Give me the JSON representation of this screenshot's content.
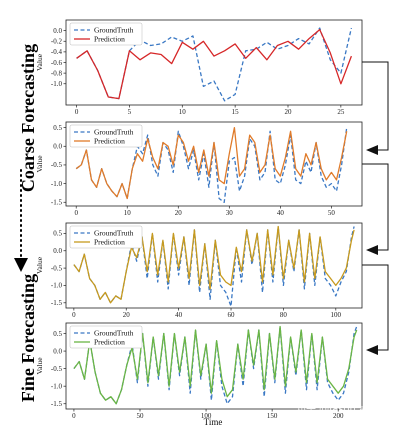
{
  "figure": {
    "side_label_top": "Coarse Forecasting",
    "side_label_bottom": "Fine Forecasting",
    "xlabel": "Time",
    "watermark": "知乎 @Jason anna"
  },
  "chart_data": [
    {
      "type": "line",
      "ylabel": "Value",
      "xlim": [
        -1,
        27
      ],
      "ylim": [
        -1.4,
        0.2
      ],
      "xticks": [
        0,
        5,
        10,
        15,
        20,
        25
      ],
      "yticks": [
        -1.0,
        -0.8,
        -0.6,
        -0.4,
        -0.2,
        0.0
      ],
      "ytick_labels": [
        "-1.0",
        "-0.8",
        "-0.6",
        "-0.4",
        "-0.2",
        "0.0"
      ],
      "legend": "top-left",
      "colors": {
        "GroundTruth": "#3a78c4",
        "Prediction": "#d62728"
      },
      "series": [
        {
          "name": "GroundTruth",
          "style": "dashed",
          "x": [
            0,
            1,
            2,
            3,
            4,
            5,
            6,
            7,
            8,
            9,
            10,
            11,
            12,
            13,
            14,
            15,
            16,
            17,
            18,
            19,
            20,
            21,
            22,
            23,
            24,
            25,
            26
          ],
          "values": [
            -0.52,
            -0.38,
            -0.75,
            -1.25,
            -1.28,
            -0.38,
            -0.18,
            -0.28,
            -0.25,
            -0.12,
            -0.2,
            -0.1,
            -1.05,
            -0.95,
            -1.32,
            -1.2,
            -0.38,
            -0.35,
            -0.22,
            -0.35,
            -0.28,
            -0.15,
            -0.25,
            0.05,
            -0.55,
            -0.8,
            0.05
          ]
        },
        {
          "name": "Prediction",
          "style": "solid",
          "x": [
            0,
            1,
            2,
            3,
            4,
            5,
            6,
            7,
            8,
            9,
            10,
            11,
            12,
            13,
            14,
            15,
            16,
            17,
            18,
            19,
            20,
            21,
            22,
            23,
            24,
            25,
            26
          ],
          "values": [
            -0.52,
            -0.38,
            -0.75,
            -1.25,
            -1.28,
            -0.38,
            -0.55,
            -0.42,
            -0.45,
            -0.62,
            -0.22,
            -0.35,
            -0.2,
            -0.48,
            -0.38,
            -0.25,
            -0.52,
            -0.32,
            -0.55,
            -0.28,
            -0.2,
            -0.35,
            -0.15,
            0.02,
            -0.42,
            -1.0,
            -0.48
          ]
        }
      ]
    },
    {
      "type": "line",
      "ylabel": "Value",
      "xlim": [
        -2,
        56
      ],
      "ylim": [
        -1.6,
        0.65
      ],
      "xticks": [
        0,
        10,
        20,
        30,
        40,
        50
      ],
      "yticks": [
        -1.5,
        -1.0,
        -0.5,
        0.0,
        0.5
      ],
      "ytick_labels": [
        "-1.5",
        "-1.0",
        "-0.5",
        "0.0",
        "0.5"
      ],
      "legend": "top-left",
      "colors": {
        "GroundTruth": "#3a78c4",
        "Prediction": "#e07b2a"
      },
      "series": [
        {
          "name": "GroundTruth",
          "style": "dashed",
          "x": [
            0,
            1,
            2,
            3,
            4,
            5,
            6,
            7,
            8,
            9,
            10,
            11,
            12,
            13,
            14,
            15,
            16,
            17,
            18,
            19,
            20,
            21,
            22,
            23,
            24,
            25,
            26,
            27,
            28,
            29,
            30,
            31,
            32,
            33,
            34,
            35,
            36,
            37,
            38,
            39,
            40,
            41,
            42,
            43,
            44,
            45,
            46,
            47,
            48,
            49,
            50,
            51,
            52,
            53
          ],
          "values": [
            -0.6,
            -0.5,
            -0.1,
            -0.9,
            -1.1,
            -0.6,
            -1.0,
            -1.2,
            -1.35,
            -1.0,
            -1.4,
            -0.6,
            0.0,
            -0.2,
            0.3,
            -0.5,
            -0.8,
            0.1,
            -0.1,
            -0.7,
            0.4,
            0.0,
            -0.6,
            -0.1,
            -0.9,
            -0.2,
            -1.1,
            0.1,
            -1.4,
            -1.5,
            -0.4,
            -0.3,
            -1.2,
            -0.8,
            0.2,
            0.0,
            -0.9,
            -0.7,
            0.4,
            -0.9,
            -1.0,
            -0.5,
            0.3,
            -0.9,
            -1.0,
            -0.4,
            -0.7,
            0.1,
            -0.8,
            -1.1,
            -1.0,
            -1.2,
            -0.5,
            0.5
          ]
        },
        {
          "name": "Prediction",
          "style": "solid",
          "x": [
            0,
            1,
            2,
            3,
            4,
            5,
            6,
            7,
            8,
            9,
            10,
            11,
            12,
            13,
            14,
            15,
            16,
            17,
            18,
            19,
            20,
            21,
            22,
            23,
            24,
            25,
            26,
            27,
            28,
            29,
            30,
            31,
            32,
            33,
            34,
            35,
            36,
            37,
            38,
            39,
            40,
            41,
            42,
            43,
            44,
            45,
            46,
            47,
            48,
            49,
            50,
            51,
            52,
            53
          ],
          "values": [
            -0.6,
            -0.5,
            -0.1,
            -0.9,
            -1.1,
            -0.6,
            -1.0,
            -1.2,
            -1.35,
            -1.0,
            -1.4,
            -0.6,
            -0.2,
            -0.4,
            0.2,
            -0.3,
            -0.6,
            0.1,
            0.0,
            -0.5,
            0.3,
            0.1,
            -0.4,
            0.0,
            -0.7,
            -0.1,
            -0.8,
            0.1,
            -0.9,
            -1.0,
            -0.2,
            0.5,
            -0.8,
            -0.6,
            0.3,
            0.1,
            -0.7,
            -0.5,
            0.3,
            -0.6,
            -0.8,
            -0.3,
            0.4,
            -0.6,
            -0.8,
            -0.2,
            -0.5,
            0.1,
            -0.6,
            -0.9,
            -0.7,
            -0.9,
            -0.3,
            0.4
          ]
        }
      ]
    },
    {
      "type": "line",
      "ylabel": "Value",
      "xlim": [
        -3,
        110
      ],
      "ylim": [
        -1.65,
        0.8
      ],
      "xticks": [
        0,
        20,
        40,
        60,
        80,
        100
      ],
      "yticks": [
        -1.5,
        -1.0,
        -0.5,
        0.0,
        0.5
      ],
      "ytick_labels": [
        "-1.5",
        "-1.0",
        "-0.5",
        "0.0",
        "0.5"
      ],
      "legend": "top-left",
      "colors": {
        "GroundTruth": "#3a78c4",
        "Prediction": "#c79a1e"
      },
      "series": [
        {
          "name": "GroundTruth",
          "style": "dashed",
          "x": [
            0,
            2,
            4,
            6,
            8,
            10,
            12,
            14,
            16,
            18,
            20,
            22,
            24,
            26,
            28,
            30,
            32,
            34,
            36,
            38,
            40,
            42,
            44,
            46,
            48,
            50,
            52,
            54,
            56,
            58,
            60,
            62,
            64,
            66,
            68,
            70,
            72,
            74,
            76,
            78,
            80,
            82,
            84,
            86,
            88,
            90,
            92,
            94,
            96,
            98,
            100,
            102,
            104,
            106,
            107
          ],
          "values": [
            -0.4,
            -0.6,
            -0.1,
            -0.8,
            -1.0,
            -1.4,
            -1.2,
            -1.5,
            -1.3,
            -1.4,
            -0.6,
            0.2,
            -0.3,
            0.4,
            -0.8,
            0.5,
            -0.9,
            0.3,
            -1.1,
            0.5,
            -0.7,
            0.4,
            -1.0,
            0.6,
            -1.2,
            0.2,
            -1.4,
            0.3,
            -1.0,
            -1.2,
            -1.6,
            0.1,
            -0.9,
            0.6,
            -0.4,
            0.5,
            -1.2,
            0.6,
            -0.9,
            0.7,
            -1.0,
            0.3,
            -0.6,
            0.6,
            -1.1,
            0.5,
            -1.0,
            0.4,
            -0.8,
            -1.0,
            -1.3,
            -0.9,
            -0.6,
            0.4,
            0.7
          ]
        },
        {
          "name": "Prediction",
          "style": "solid",
          "x": [
            0,
            2,
            4,
            6,
            8,
            10,
            12,
            14,
            16,
            18,
            20,
            22,
            24,
            26,
            28,
            30,
            32,
            34,
            36,
            38,
            40,
            42,
            44,
            46,
            48,
            50,
            52,
            54,
            56,
            58,
            60,
            62,
            64,
            66,
            68,
            70,
            72,
            74,
            76,
            78,
            80,
            82,
            84,
            86,
            88,
            90,
            92,
            94,
            96,
            98,
            100,
            102,
            104,
            106,
            107
          ],
          "values": [
            -0.4,
            -0.6,
            -0.1,
            -0.8,
            -1.0,
            -1.4,
            -1.2,
            -1.5,
            -1.3,
            -1.4,
            -0.6,
            0.1,
            -0.2,
            0.4,
            -0.6,
            0.5,
            -0.7,
            0.3,
            -0.9,
            0.5,
            -0.5,
            0.4,
            -0.8,
            0.6,
            -1.0,
            0.2,
            -1.1,
            0.3,
            -0.7,
            -0.9,
            -1.0,
            0.1,
            -0.6,
            0.6,
            -0.3,
            0.5,
            -0.9,
            0.6,
            -0.7,
            0.7,
            -0.8,
            0.3,
            -0.5,
            0.6,
            -0.9,
            0.5,
            -0.8,
            0.4,
            -0.6,
            -0.8,
            -1.0,
            -0.8,
            -0.5,
            0.3,
            0.6
          ]
        }
      ]
    },
    {
      "type": "line",
      "ylabel": "Value",
      "xlim": [
        -6,
        218
      ],
      "ylim": [
        -1.65,
        0.8
      ],
      "xticks": [
        0,
        50,
        100,
        150,
        200
      ],
      "yticks": [
        -1.5,
        -1.0,
        -0.5,
        0.0,
        0.5
      ],
      "ytick_labels": [
        "-1.5",
        "-1.0",
        "-0.5",
        "0.0",
        "0.5"
      ],
      "legend": "top-left",
      "colors": {
        "GroundTruth": "#3a78c4",
        "Prediction": "#6ab545"
      },
      "series": [
        {
          "name": "GroundTruth",
          "style": "dashed",
          "x": [
            0,
            4,
            8,
            12,
            16,
            20,
            24,
            28,
            32,
            36,
            40,
            44,
            48,
            52,
            56,
            60,
            64,
            68,
            72,
            76,
            80,
            84,
            88,
            92,
            96,
            100,
            104,
            108,
            112,
            116,
            120,
            124,
            128,
            132,
            136,
            140,
            144,
            148,
            152,
            156,
            160,
            164,
            168,
            172,
            176,
            180,
            184,
            188,
            192,
            196,
            200,
            204,
            208,
            212,
            214
          ],
          "values": [
            -0.5,
            -0.3,
            -0.8,
            0.3,
            -0.6,
            -1.2,
            -1.4,
            -1.3,
            -1.5,
            -1.1,
            -0.4,
            0.2,
            -0.9,
            0.5,
            -1.0,
            0.4,
            -0.8,
            0.5,
            -1.1,
            0.5,
            -0.7,
            0.4,
            -1.2,
            0.6,
            -0.8,
            0.2,
            -1.4,
            0.3,
            -1.0,
            -1.5,
            -1.3,
            0.2,
            -1.0,
            0.6,
            -0.5,
            0.6,
            -1.3,
            0.5,
            -0.9,
            0.7,
            -1.2,
            0.4,
            -0.7,
            0.6,
            -1.1,
            0.5,
            -1.1,
            0.4,
            -0.9,
            -1.2,
            -1.4,
            -1.2,
            -0.6,
            0.5,
            0.7
          ]
        },
        {
          "name": "Prediction",
          "style": "solid",
          "x": [
            0,
            4,
            8,
            12,
            16,
            20,
            24,
            28,
            32,
            36,
            40,
            44,
            48,
            52,
            56,
            60,
            64,
            68,
            72,
            76,
            80,
            84,
            88,
            92,
            96,
            100,
            104,
            108,
            112,
            116,
            120,
            124,
            128,
            132,
            136,
            140,
            144,
            148,
            152,
            156,
            160,
            164,
            168,
            172,
            176,
            180,
            184,
            188,
            192,
            196,
            200,
            204,
            208,
            212,
            214
          ],
          "values": [
            -0.5,
            -0.3,
            -0.8,
            0.3,
            -0.6,
            -1.2,
            -1.4,
            -1.3,
            -1.5,
            -1.1,
            -0.4,
            0.1,
            -0.8,
            0.5,
            -0.9,
            0.4,
            -0.7,
            0.5,
            -1.0,
            0.5,
            -0.6,
            0.4,
            -1.0,
            0.6,
            -0.7,
            0.2,
            -1.2,
            0.3,
            -0.8,
            -1.3,
            -1.1,
            0.2,
            -0.8,
            0.6,
            -0.4,
            0.6,
            -1.1,
            0.5,
            -0.8,
            0.7,
            -1.0,
            0.4,
            -0.6,
            0.6,
            -0.9,
            0.5,
            -0.9,
            0.4,
            -0.8,
            -1.0,
            -1.2,
            -1.0,
            -0.5,
            0.4,
            0.6
          ]
        }
      ]
    }
  ]
}
